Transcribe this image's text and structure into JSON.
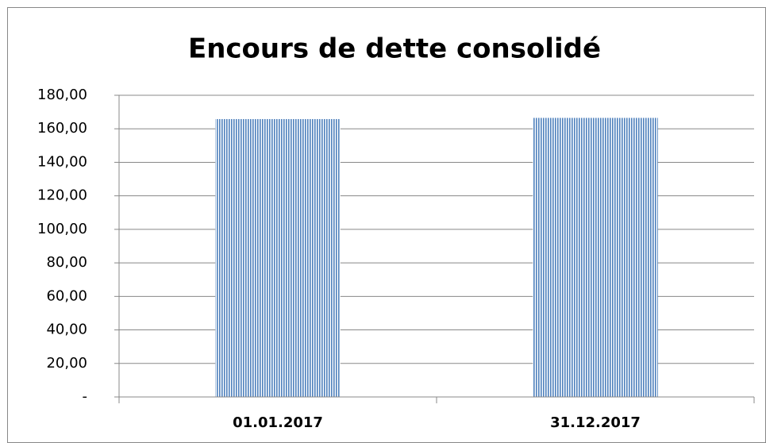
{
  "chart_data": {
    "type": "bar",
    "title": "Encours de dette consolidé",
    "categories": [
      "01.01.2017",
      "31.12.2017"
    ],
    "values": [
      165.8,
      166.5
    ],
    "color": "#4f81bd",
    "ylim": [
      0,
      180
    ],
    "yticks": [
      {
        "value": 0,
        "label": "-"
      },
      {
        "value": 20,
        "label": "20,00"
      },
      {
        "value": 40,
        "label": "40,00"
      },
      {
        "value": 60,
        "label": "60,00"
      },
      {
        "value": 80,
        "label": "80,00"
      },
      {
        "value": 100,
        "label": "100,00"
      },
      {
        "value": 120,
        "label": "120,00"
      },
      {
        "value": 140,
        "label": "140,00"
      },
      {
        "value": 160,
        "label": "160,00"
      },
      {
        "value": 180,
        "label": "180,00"
      }
    ],
    "grid": true
  }
}
